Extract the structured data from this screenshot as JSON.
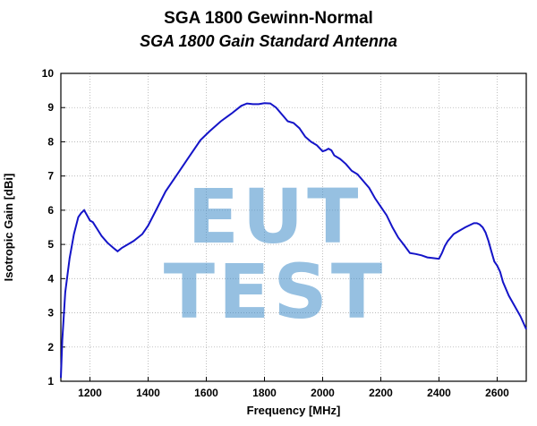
{
  "chart_data": {
    "type": "line",
    "title": "SGA 1800 Gewinn-Normal",
    "subtitle": "SGA 1800 Gain Standard Antenna",
    "xlabel": "Frequency [MHz]",
    "ylabel": "Isotropic Gain [dBi]",
    "xlim": [
      1100,
      2700
    ],
    "ylim": [
      1,
      10
    ],
    "xticks": [
      1200,
      1400,
      1600,
      1800,
      2000,
      2200,
      2400,
      2600
    ],
    "yticks": [
      1,
      2,
      3,
      4,
      5,
      6,
      7,
      8,
      9,
      10
    ],
    "grid": true,
    "line_color": "#1414c8",
    "series": [
      {
        "x": [
          1100,
          1105,
          1115,
          1130,
          1145,
          1160,
          1170,
          1180,
          1190,
          1200,
          1210,
          1225,
          1240,
          1260,
          1280,
          1295,
          1310,
          1330,
          1350,
          1380,
          1400,
          1430,
          1460,
          1500,
          1540,
          1580,
          1610,
          1650,
          1690,
          1720,
          1740,
          1760,
          1780,
          1800,
          1820,
          1840,
          1860,
          1880,
          1900,
          1920,
          1940,
          1960,
          1980,
          2000,
          2010,
          2020,
          2030,
          2040,
          2060,
          2080,
          2100,
          2120,
          2140,
          2160,
          2180,
          2200,
          2220,
          2240,
          2260,
          2280,
          2300,
          2320,
          2340,
          2360,
          2380,
          2400,
          2410,
          2420,
          2430,
          2450,
          2470,
          2490,
          2510,
          2520,
          2530,
          2540,
          2550,
          2560,
          2570,
          2580,
          2590,
          2600,
          2610,
          2620,
          2640,
          2660,
          2680,
          2700
        ],
        "y": [
          1.1,
          2.2,
          3.6,
          4.6,
          5.3,
          5.8,
          5.92,
          6.0,
          5.85,
          5.7,
          5.65,
          5.45,
          5.25,
          5.05,
          4.9,
          4.8,
          4.9,
          5.0,
          5.1,
          5.3,
          5.55,
          6.05,
          6.55,
          7.05,
          7.55,
          8.05,
          8.3,
          8.6,
          8.85,
          9.05,
          9.12,
          9.1,
          9.1,
          9.13,
          9.12,
          9.0,
          8.8,
          8.6,
          8.55,
          8.4,
          8.15,
          8.0,
          7.9,
          7.72,
          7.75,
          7.8,
          7.75,
          7.6,
          7.5,
          7.35,
          7.15,
          7.05,
          6.85,
          6.65,
          6.35,
          6.1,
          5.85,
          5.5,
          5.2,
          4.98,
          4.75,
          4.72,
          4.68,
          4.62,
          4.6,
          4.58,
          4.75,
          4.95,
          5.1,
          5.3,
          5.4,
          5.5,
          5.58,
          5.62,
          5.62,
          5.58,
          5.5,
          5.35,
          5.1,
          4.8,
          4.5,
          4.38,
          4.2,
          3.9,
          3.5,
          3.2,
          2.9,
          2.52
        ]
      }
    ]
  }
}
